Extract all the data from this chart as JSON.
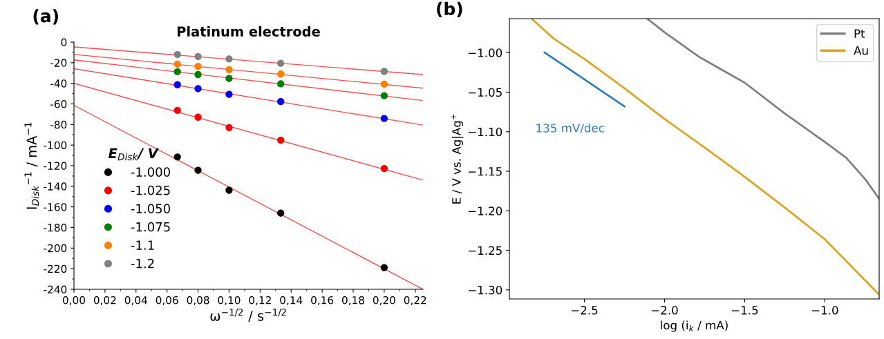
{
  "chart_data": [
    {
      "type": "scatter",
      "title": "Platinum electrode",
      "xlabel": "ω$^{−1/2}$ / s$^{−1/2}$",
      "ylabel": "I$_{Disk}$$^{−1}$ / mA$^{−1}$",
      "legend_title": "E$_{Disk}$/ V",
      "annotations": [
        "(a)"
      ],
      "xlim": [
        0,
        0.225
      ],
      "ylim": [
        -240,
        0
      ],
      "xticks": [
        {
          "value": 0,
          "label": "0,00"
        },
        {
          "value": 0.02,
          "label": "0,02"
        },
        {
          "value": 0.04,
          "label": "0,04"
        },
        {
          "value": 0.06,
          "label": "0,06"
        },
        {
          "value": 0.08,
          "label": "0,08"
        },
        {
          "value": 0.1,
          "label": "0,10"
        },
        {
          "value": 0.12,
          "label": "0,12"
        },
        {
          "value": 0.14,
          "label": "0,14"
        },
        {
          "value": 0.16,
          "label": "0,16"
        },
        {
          "value": 0.18,
          "label": "0,18"
        },
        {
          "value": 0.2,
          "label": "0,20"
        },
        {
          "value": 0.22,
          "label": "0,22"
        }
      ],
      "yticks": [
        -240,
        -220,
        -200,
        -180,
        -160,
        -140,
        -120,
        -100,
        -80,
        -60,
        -40,
        -20,
        0
      ],
      "x": [
        0.0667,
        0.08,
        0.1,
        0.1333,
        0.2
      ],
      "series": [
        {
          "type": "line",
          "marker": "none",
          "color": "#ff4d4d",
          "x": [
            0,
            0.225
          ],
          "values": [
            -61.4,
            -240
          ]
        },
        {
          "type": "line",
          "marker": "none",
          "color": "#ff4d4d",
          "x": [
            0,
            0.225
          ],
          "values": [
            -40,
            -134
          ]
        },
        {
          "type": "line",
          "marker": "none",
          "color": "#ff4d4d",
          "x": [
            0,
            0.225
          ],
          "values": [
            -25.8,
            -80.5
          ]
        },
        {
          "type": "line",
          "marker": "none",
          "color": "#ff4d4d",
          "x": [
            0,
            0.225
          ],
          "values": [
            -17.3,
            -56.7
          ]
        },
        {
          "type": "line",
          "marker": "none",
          "color": "#ff4d4d",
          "x": [
            0,
            0.225
          ],
          "values": [
            -12,
            -44.7
          ]
        },
        {
          "type": "line",
          "marker": "none",
          "color": "#ff4d4d",
          "x": [
            0,
            0.225
          ],
          "values": [
            -4.7,
            -31.5
          ]
        },
        {
          "name": "-1.000",
          "color": "#000000",
          "values": [
            -111.5,
            -124.4,
            -143.8,
            -166,
            -218.9
          ]
        },
        {
          "name": "-1.025",
          "color": "#ff0000",
          "values": [
            -66.3,
            -72.9,
            -83,
            -95.3,
            -122.7
          ]
        },
        {
          "name": "-1.050",
          "color": "#0000ff",
          "values": [
            -41.4,
            -45.2,
            -50.7,
            -57.8,
            -74.2
          ]
        },
        {
          "name": "-1.075",
          "color": "#008000",
          "values": [
            -28.8,
            -31.5,
            -35.3,
            -40.5,
            -52
          ]
        },
        {
          "name": "-1.1",
          "color": "#ff8000",
          "values": [
            -21.4,
            -23.6,
            -26.8,
            -31,
            -40.8
          ]
        },
        {
          "name": "-1.2",
          "color": "#808080",
          "values": [
            -12,
            -14,
            -16.4,
            -20.5,
            -28.5
          ]
        }
      ],
      "marker": "circle",
      "grid": false,
      "legend": "bottom left"
    },
    {
      "type": "line",
      "xlabel": "log (i$_{k}$ / mA)",
      "ylabel": "E / V vs. Ag|Ag$^{+}$",
      "annotations": [
        "(b)",
        "135 mV/dec"
      ],
      "xlim": [
        -2.968,
        -0.661
      ],
      "ylim": [
        -1.3115,
        -0.957
      ],
      "xticks": [
        {
          "value": -2.5,
          "label": "−2.5"
        },
        {
          "value": -2.0,
          "label": "−2.0"
        },
        {
          "value": -1.5,
          "label": "−1.5"
        },
        {
          "value": -1.0,
          "label": "−1.0"
        }
      ],
      "yticks": [
        {
          "value": -1.3,
          "label": "−1.30"
        },
        {
          "value": -1.25,
          "label": "−1.25"
        },
        {
          "value": -1.2,
          "label": "−1.20"
        },
        {
          "value": -1.15,
          "label": "−1.15"
        },
        {
          "value": -1.1,
          "label": "−1.10"
        },
        {
          "value": -1.05,
          "label": "−1.05"
        },
        {
          "value": -1.0,
          "label": "−1.00"
        }
      ],
      "series": [
        {
          "name": "Pt",
          "color": "#808080",
          "x": [
            -2.108,
            -1.995,
            -1.787,
            -1.683,
            -1.5,
            -1.25,
            -1.0,
            -0.866,
            -0.744,
            -0.661
          ],
          "values": [
            -0.957,
            -0.975,
            -1.005,
            -1.017,
            -1.038,
            -1.077,
            -1.113,
            -1.133,
            -1.161,
            -1.185
          ]
        },
        {
          "name": "Au",
          "color": "#daa520",
          "x": [
            -2.83,
            -2.693,
            -2.5,
            -2.25,
            -2.0,
            -1.75,
            -1.5,
            -1.25,
            -1.0,
            -0.661
          ],
          "values": [
            -0.957,
            -0.982,
            -1.008,
            -1.045,
            -1.084,
            -1.12,
            -1.157,
            -1.196,
            -1.236,
            -1.306
          ]
        },
        {
          "color": "#2e7ebc",
          "x": [
            -2.748,
            -2.25
          ],
          "values": [
            -1.0,
            -1.068
          ]
        }
      ],
      "grid": false,
      "legend": "top right",
      "line_style": "solid"
    }
  ]
}
